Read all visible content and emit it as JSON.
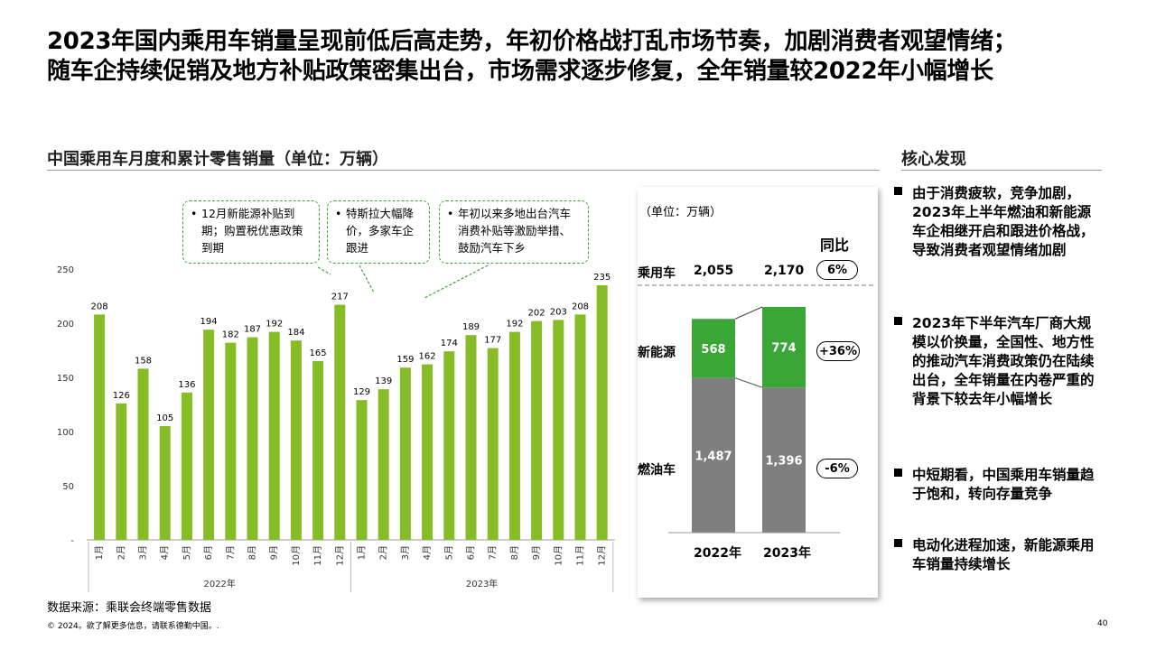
{
  "title_line1": "2023年国内乘用车销量呈现前低后高走势，年初价格战打乱市场节奏，加剧消费者观望情绪；",
  "title_line2": "随车企持续促销及地方补贴政策密集出台，市场需求逐步修复，全年销量较2022年小幅增长",
  "left_section_title": "中国乘用车月度和累计零售销量（单位：万辆）",
  "right_section_title": "核心发现",
  "callouts": [
    {
      "bullet": "•",
      "text": "12月新能源补贴到期；购置税优惠政策到期"
    },
    {
      "bullet": "•",
      "text": "特斯拉大幅降价，多家车企跟进"
    },
    {
      "bullet": "•",
      "text": "年初以来多地出台汽车消费补贴等激励举措、鼓励汽车下乡"
    }
  ],
  "chart_data": [
    {
      "type": "bar",
      "title": "中国乘用车月度和累计零售销量（单位：万辆）",
      "ylim": [
        0,
        250
      ],
      "yticks": [
        "-",
        "50",
        "100",
        "150",
        "200",
        "250"
      ],
      "color": "#86bc25",
      "groups": [
        {
          "label": "2022年",
          "categories": [
            "1月",
            "2月",
            "3月",
            "4月",
            "5月",
            "6月",
            "7月",
            "8月",
            "9月",
            "10月",
            "11月",
            "12月"
          ],
          "values": [
            208,
            126,
            158,
            105,
            136,
            194,
            182,
            187,
            192,
            184,
            165,
            217
          ]
        },
        {
          "label": "2023年",
          "categories": [
            "1月",
            "2月",
            "3月",
            "4月",
            "5月",
            "6月",
            "7月",
            "8月",
            "9月",
            "10月",
            "11月",
            "12月"
          ],
          "values": [
            129,
            139,
            159,
            162,
            174,
            189,
            177,
            192,
            202,
            203,
            208,
            235
          ]
        }
      ]
    },
    {
      "type": "bar",
      "stacked": true,
      "unit": "（单位：万辆）",
      "yoy_header": "同比",
      "total_label": "乘用车",
      "categories": [
        "2022年",
        "2023年"
      ],
      "totals": [
        "2,055",
        "2,170"
      ],
      "total_yoy": "6%",
      "series": [
        {
          "name": "新能源",
          "values": [
            568,
            774
          ],
          "labels": [
            "568",
            "774"
          ],
          "color": "#3aa635",
          "yoy": "+36%"
        },
        {
          "name": "燃油车",
          "values": [
            1487,
            1396
          ],
          "labels": [
            "1,487",
            "1,396"
          ],
          "color": "#7f7f7f",
          "yoy": "-6%"
        }
      ]
    }
  ],
  "findings": [
    "由于消费疲软，竞争加剧，2023年上半年燃油和新能源车企相继开启和跟进价格战，导致消费者观望情绪加剧",
    "2023年下半年汽车厂商大规模以价换量，全国性、地方性的推动汽车消费政策仍在陆续出台，全年销量在内卷严重的背景下较去年小幅增长",
    "中短期看，中国乘用车销量趋于饱和，转向存量竞争",
    "电动化进程加速，新能源乘用车销量持续增长"
  ],
  "source": "数据来源：乘联会终端零售数据",
  "copyright": "© 2024。欲了解更多信息，请联系德勤中国。.",
  "page_number": "40"
}
